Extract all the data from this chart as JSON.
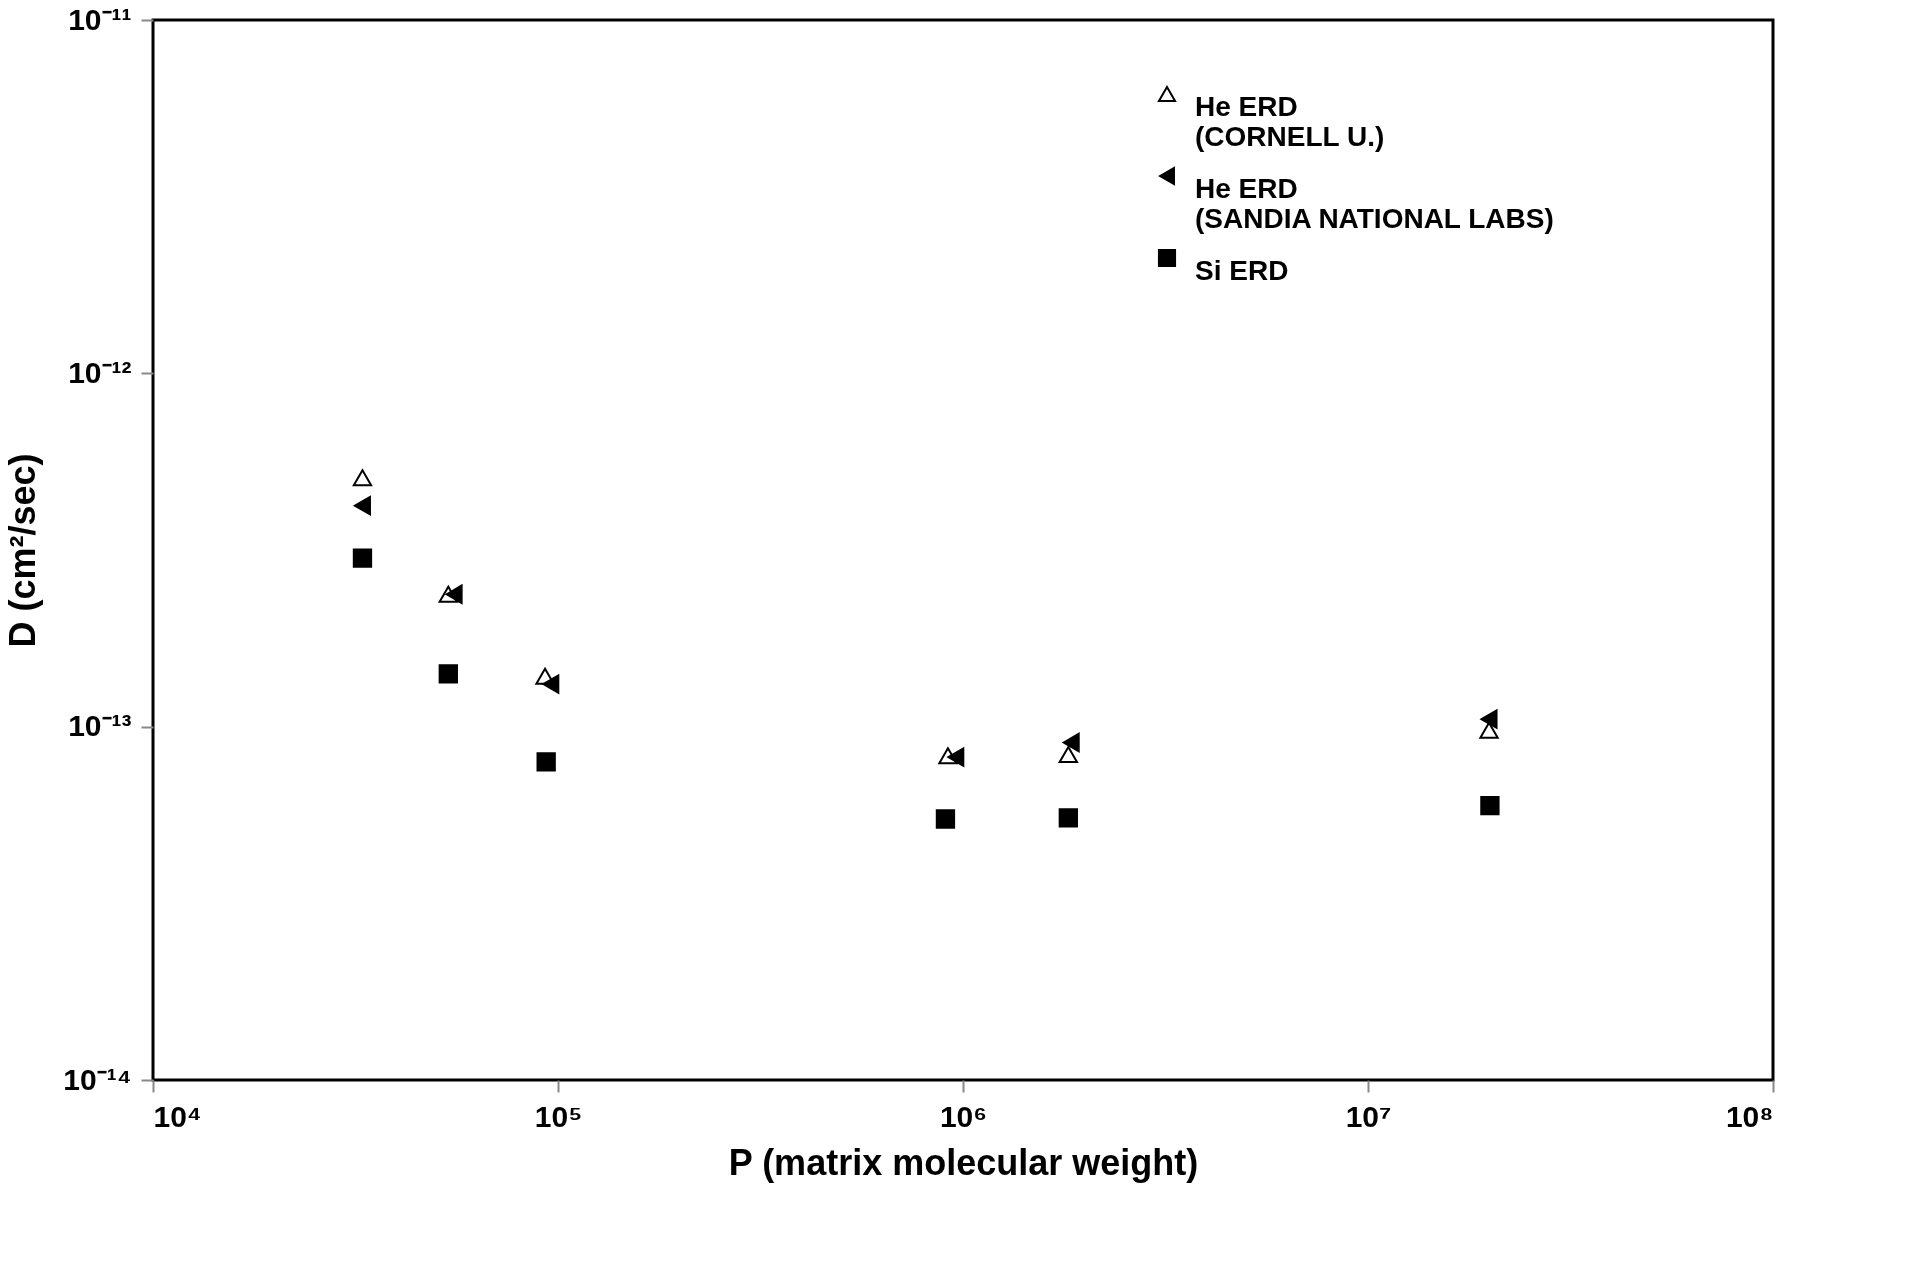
{
  "chart_data": {
    "type": "scatter",
    "xlabel": "P (matrix molecular weight)",
    "ylabel": "D (cm²/sec)",
    "log": "xy",
    "grid": false,
    "legend": "top right",
    "xlim": [
      10000,
      100000000
    ],
    "xticks": [
      {
        "value": 10000,
        "label": "10⁴"
      },
      {
        "value": 100000,
        "label": "10⁵"
      },
      {
        "value": 1000000,
        "label": "10⁶"
      },
      {
        "value": 10000000,
        "label": "10⁷"
      },
      {
        "value": 100000000,
        "label": "10⁸"
      }
    ],
    "ylim": [
      1e-14,
      1e-11
    ],
    "yticks": [
      {
        "value": 1e-14,
        "label": "10⁻¹⁴"
      },
      {
        "value": 1e-13,
        "label": "10⁻¹³"
      },
      {
        "value": 1e-12,
        "label": "10⁻¹²"
      },
      {
        "value": 1e-11,
        "label": "10⁻¹¹"
      }
    ],
    "series": [
      {
        "name": "He ERD\n(CORNELL U.)",
        "color": "#000000",
        "marker": "triangle-open",
        "x": [
          32900,
          53600,
          92900,
          918000,
          1820000,
          19900000
        ],
        "values": [
          5.06e-13,
          2.37e-13,
          1.39e-13,
          8.27e-14,
          8.34e-14,
          9.77e-14
        ]
      },
      {
        "name": "He ERD\n(SANDIA NATIONAL LABS)",
        "color": "#000000",
        "marker": "triangle-left",
        "x": [
          32900,
          55400,
          96000,
          960000,
          1850000,
          19900000
        ],
        "values": [
          4.22e-13,
          2.37e-13,
          1.32e-13,
          8.2e-14,
          9.02e-14,
          1.05e-13
        ]
      },
      {
        "name": "Si ERD",
        "color": "#000000",
        "marker": "square",
        "x": [
          32900,
          53600,
          93500,
          905000,
          1820000,
          20000000
        ],
        "values": [
          3e-13,
          1.41e-13,
          7.95e-14,
          5.48e-14,
          5.52e-14,
          5.98e-14
        ]
      }
    ]
  }
}
